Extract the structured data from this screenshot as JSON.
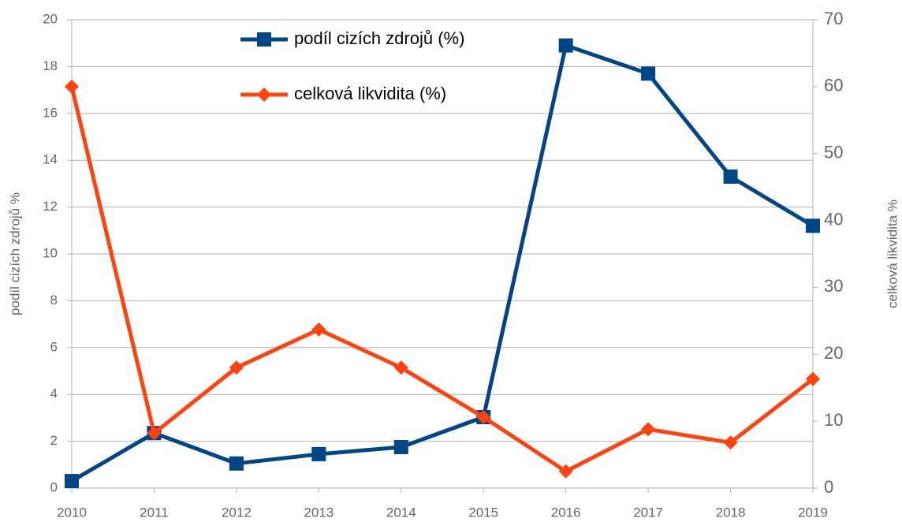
{
  "chart_data": {
    "type": "line",
    "x": [
      2010,
      2011,
      2012,
      2013,
      2014,
      2015,
      2016,
      2017,
      2018,
      2019
    ],
    "xlim": [
      2010,
      2019
    ],
    "xticks": [
      2010,
      2011,
      2012,
      2013,
      2014,
      2015,
      2016,
      2017,
      2018,
      2019
    ],
    "ylabel": "podíl cizích zdrojů %",
    "y2label": "celková likvidita %",
    "ylim": [
      0,
      20
    ],
    "yticks": [
      0,
      2,
      4,
      6,
      8,
      10,
      12,
      14,
      16,
      18,
      20
    ],
    "y2lim": [
      0,
      70
    ],
    "y2ticks": [
      0,
      10,
      20,
      30,
      40,
      50,
      60,
      70
    ],
    "grid": true,
    "legend_position": "top",
    "series": [
      {
        "name": "podíl cizích zdrojů (%)",
        "color": "#004586",
        "marker": "square",
        "values": [
          0.3,
          2.35,
          1.05,
          1.45,
          1.75,
          3.03,
          18.9,
          17.7,
          13.3,
          11.2
        ]
      },
      {
        "name": "celková likvidita (%)",
        "color": "#ff420e",
        "marker": "diamond",
        "axis": "y2",
        "values": [
          60,
          8.2,
          18.0,
          23.7,
          18.0,
          10.6,
          2.5,
          8.8,
          6.8,
          16.3
        ]
      }
    ]
  }
}
